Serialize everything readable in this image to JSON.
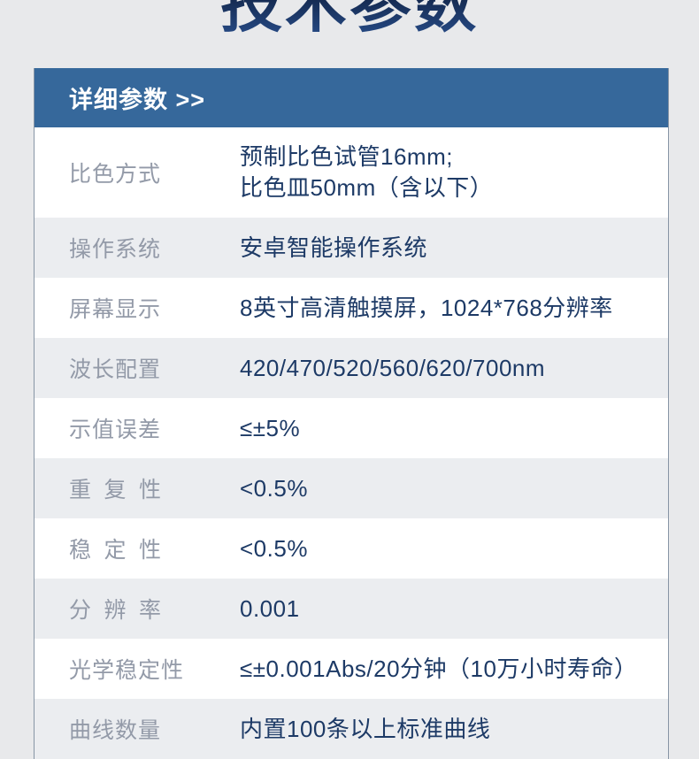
{
  "title": "技术参数",
  "panel": {
    "header_label": "详细参数 >>"
  },
  "table": {
    "rows": [
      {
        "label": "比色方式",
        "value": "预制比色试管16mm;\n比色皿50mm（含以下）"
      },
      {
        "label": "操作系统",
        "value": "安卓智能操作系统"
      },
      {
        "label": "屏幕显示",
        "value": "8英寸高清触摸屏，1024*768分辨率"
      },
      {
        "label": "波长配置",
        "value": "420/470/520/560/620/700nm"
      },
      {
        "label": "示值误差",
        "value": "≤±5%"
      },
      {
        "label": "重 复 性",
        "value": "<0.5%"
      },
      {
        "label": "稳 定 性",
        "value": "<0.5%"
      },
      {
        "label": "分 辨 率",
        "value": "0.001"
      },
      {
        "label": "光学稳定性",
        "value": "≤±0.001Abs/20分钟（10万小时寿命）"
      },
      {
        "label": "曲线数量",
        "value": "内置100条以上标准曲线"
      }
    ]
  },
  "colors": {
    "page_background": "#e8e9eb",
    "banner_blue": "#36689b",
    "row_stripe_gray": "#ebedf0",
    "value_navy": "#1d3a66",
    "label_gray": "#939aa8",
    "title_navy_top": "#0b1833",
    "title_navy_bottom": "#264a85"
  }
}
